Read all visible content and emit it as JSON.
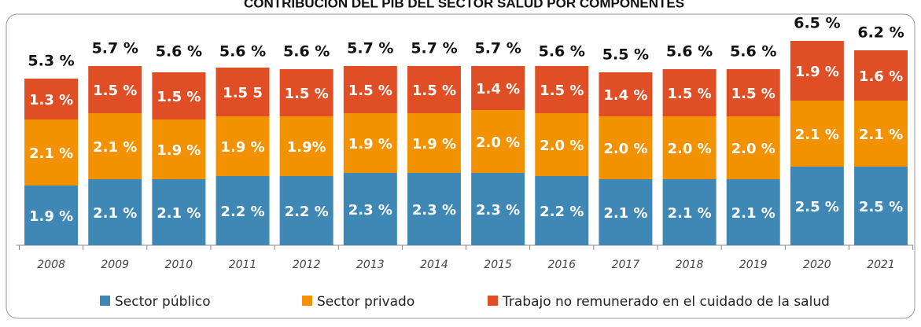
{
  "chart_data": {
    "type": "bar",
    "stacked": true,
    "title": "CONTRIBUCIÓN DEL PIB DEL SECTOR SALUD POR COMPONENTES",
    "categories": [
      "2008",
      "2009",
      "2010",
      "2011",
      "2012",
      "2013",
      "2014",
      "2015",
      "2016",
      "2017",
      "2018",
      "2019",
      "2020",
      "2021"
    ],
    "series": [
      {
        "name": "Sector público",
        "color": "#3f87b4",
        "values": [
          1.9,
          2.1,
          2.1,
          2.2,
          2.2,
          2.3,
          2.3,
          2.3,
          2.2,
          2.1,
          2.1,
          2.1,
          2.5,
          2.5
        ],
        "value_labels": [
          "1.9 %",
          "2.1 %",
          "2.1 %",
          "2.2 %",
          "2.2 %",
          "2.3 %",
          "2.3 %",
          "2.3 %",
          "2.2 %",
          "2.1 %",
          "2.1 %",
          "2.1 %",
          "2.5 %",
          "2.5 %"
        ]
      },
      {
        "name": "Sector privado",
        "color": "#f39200",
        "values": [
          2.1,
          2.1,
          1.9,
          1.9,
          1.9,
          1.9,
          1.9,
          2.0,
          2.0,
          2.0,
          2.0,
          2.0,
          2.1,
          2.1
        ],
        "value_labels": [
          "2.1 %",
          "2.1 %",
          "1.9 %",
          "1.9 %",
          "1.9%",
          "1.9 %",
          "1.9 %",
          "2.0 %",
          "2.0 %",
          "2.0 %",
          "2.0 %",
          "2.0 %",
          "2.1 %",
          "2.1 %"
        ]
      },
      {
        "name": "Trabajo no remunerado en el cuidado de la salud",
        "color": "#e04e25",
        "values": [
          1.3,
          1.5,
          1.5,
          1.55,
          1.5,
          1.5,
          1.5,
          1.4,
          1.5,
          1.4,
          1.5,
          1.5,
          1.9,
          1.6
        ],
        "value_labels": [
          "1.3 %",
          "1.5 %",
          "1.5 %",
          "1.5 5",
          "1.5 %",
          "1.5 %",
          "1.5 %",
          "1.4 %",
          "1.5 %",
          "1.4 %",
          "1.5 %",
          "1.5 %",
          "1.9 %",
          "1.6 %"
        ]
      }
    ],
    "totals": [
      5.3,
      5.7,
      5.6,
      5.6,
      5.6,
      5.7,
      5.7,
      5.7,
      5.6,
      5.5,
      5.6,
      5.6,
      6.5,
      6.2
    ],
    "total_labels": [
      "5.3 %",
      "5.7 %",
      "5.6 %",
      "5.6 %",
      "5.6 %",
      "5.7 %",
      "5.7 %",
      "5.7 %",
      "5.6 %",
      "5.5 %",
      "5.6 %",
      "5.6 %",
      "6.5 %",
      "6.2 %"
    ],
    "ylim": [
      0,
      7.8
    ],
    "legend": "bottom"
  }
}
